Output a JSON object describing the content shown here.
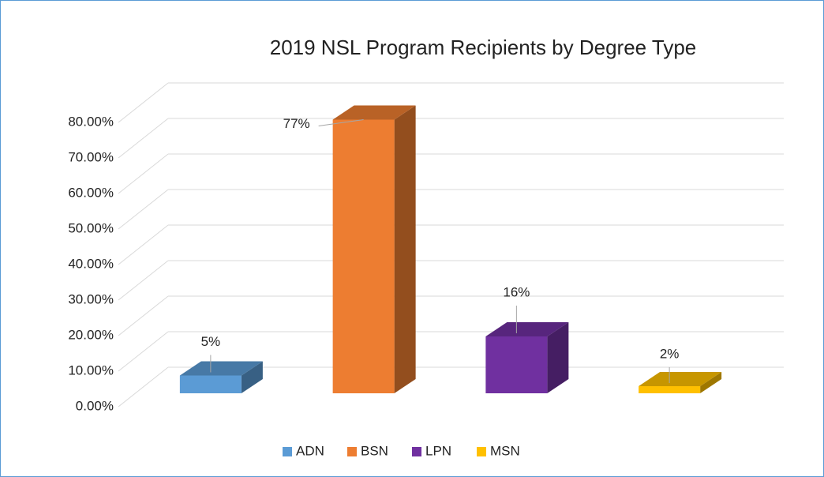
{
  "chart_data": {
    "type": "bar3d",
    "title": "2019 NSL Program Recipients by Degree Type",
    "categories": [
      "ADN",
      "BSN",
      "LPN",
      "MSN"
    ],
    "values": [
      5,
      77,
      16,
      2
    ],
    "value_labels": [
      "5%",
      "77%",
      "16%",
      "2%"
    ],
    "colors": [
      "#5b9bd5",
      "#ed7d31",
      "#7030a0",
      "#ffc000"
    ],
    "ylim": [
      0,
      80
    ],
    "yticks": [
      {
        "value": 0,
        "label": "0.00%"
      },
      {
        "value": 10,
        "label": "10.00%"
      },
      {
        "value": 20,
        "label": "20.00%"
      },
      {
        "value": 30,
        "label": "30.00%"
      },
      {
        "value": 40,
        "label": "40.00%"
      },
      {
        "value": 50,
        "label": "50.00%"
      },
      {
        "value": 60,
        "label": "60.00%"
      },
      {
        "value": 70,
        "label": "70.00%"
      },
      {
        "value": 80,
        "label": "80.00%"
      }
    ],
    "grid": true,
    "legend": "bottom"
  }
}
